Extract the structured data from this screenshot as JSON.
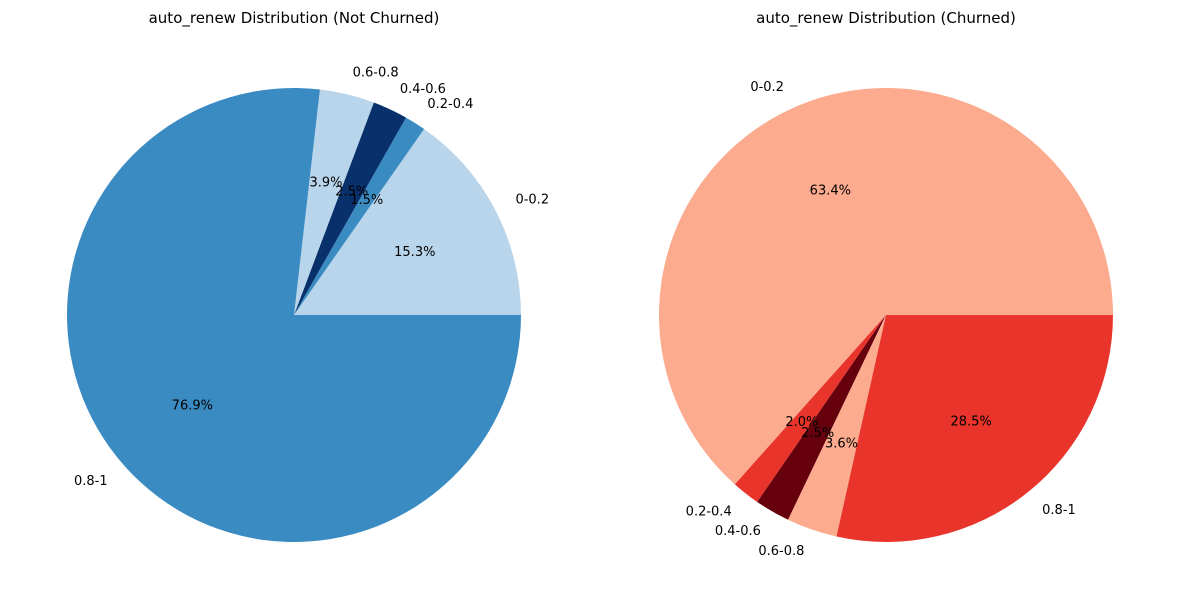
{
  "chart_data": [
    {
      "type": "pie",
      "title": "auto_renew Distribution (Not Churned)",
      "slices": [
        {
          "label": "0-0.2",
          "value": 15.3,
          "pct_label": "15.3%",
          "color": "#b9d5eb"
        },
        {
          "label": "0.2-0.4",
          "value": 1.5,
          "pct_label": "1.5%",
          "color": "#3b8bc3"
        },
        {
          "label": "0.4-0.6",
          "value": 2.5,
          "pct_label": "2.5%",
          "color": "#08306b"
        },
        {
          "label": "0.6-0.8",
          "value": 3.9,
          "pct_label": "3.9%",
          "color": "#b9d5eb"
        },
        {
          "label": "0.8-1",
          "value": 76.9,
          "pct_label": "76.9%",
          "color": "#3b8bc3"
        }
      ],
      "start_angle_deg": 0,
      "direction": "counterclockwise"
    },
    {
      "type": "pie",
      "title": "auto_renew Distribution (Churned)",
      "slices": [
        {
          "label": "0-0.2",
          "value": 63.4,
          "pct_label": "63.4%",
          "color": "#fcab8f"
        },
        {
          "label": "0.2-0.4",
          "value": 2.0,
          "pct_label": "2.0%",
          "color": "#e8342b"
        },
        {
          "label": "0.4-0.6",
          "value": 2.5,
          "pct_label": "2.5%",
          "color": "#67000d"
        },
        {
          "label": "0.6-0.8",
          "value": 3.6,
          "pct_label": "3.6%",
          "color": "#fcab8f"
        },
        {
          "label": "0.8-1",
          "value": 28.5,
          "pct_label": "28.5%",
          "color": "#e8342b"
        }
      ],
      "start_angle_deg": 0,
      "direction": "counterclockwise"
    }
  ]
}
